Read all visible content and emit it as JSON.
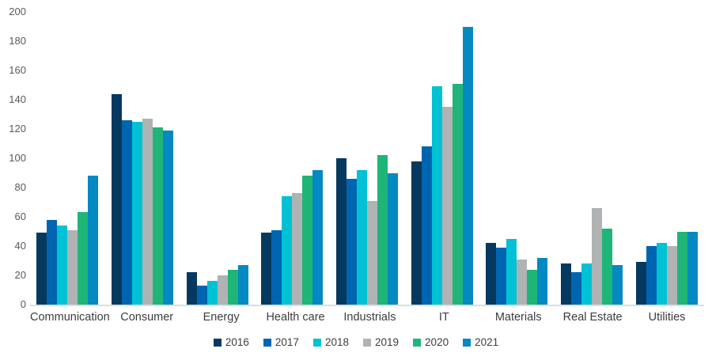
{
  "chart_data": {
    "type": "bar",
    "title": "",
    "xlabel": "",
    "ylabel": "",
    "grid": false,
    "legend_position": "bottom",
    "ylim": [
      0,
      200
    ],
    "ytick_step": 20,
    "ytick_labels": [
      "0",
      "20",
      "40",
      "60",
      "80",
      "100",
      "120",
      "140",
      "160",
      "180",
      "200"
    ],
    "categories": [
      "Communication",
      "Consumer",
      "Energy",
      "Health care",
      "Industrials",
      "IT",
      "Materials",
      "Real Estate",
      "Utilities"
    ],
    "series": [
      {
        "name": "2016",
        "color": "#06395f",
        "values": [
          49,
          144,
          22,
          49,
          100,
          98,
          42,
          28,
          29
        ]
      },
      {
        "name": "2017",
        "color": "#0065b1",
        "values": [
          58,
          126,
          13,
          51,
          86,
          108,
          39,
          22,
          40
        ]
      },
      {
        "name": "2018",
        "color": "#00c2d4",
        "values": [
          54,
          125,
          16,
          74,
          92,
          149,
          45,
          28,
          42
        ]
      },
      {
        "name": "2019",
        "color": "#b0b3b3",
        "values": [
          51,
          127,
          20,
          76,
          71,
          135,
          31,
          66,
          40
        ]
      },
      {
        "name": "2020",
        "color": "#1fb578",
        "values": [
          63,
          121,
          24,
          88,
          102,
          151,
          24,
          52,
          50
        ]
      },
      {
        "name": "2021",
        "color": "#0589c2",
        "values": [
          88,
          119,
          27,
          92,
          90,
          190,
          32,
          27,
          50
        ]
      }
    ]
  },
  "colors": {
    "background": "#ffffff",
    "axis_line": "#dcdede",
    "tick_label": "#595959",
    "category_label": "#3d3d3d",
    "legend_label": "#3d3d3d"
  }
}
